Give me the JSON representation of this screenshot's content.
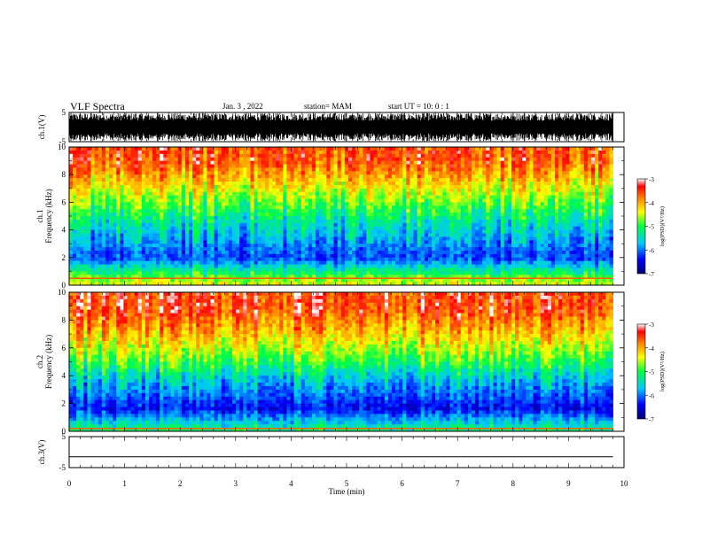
{
  "header": {
    "title": "VLF Spectra",
    "date": "Jan. 3 , 2022",
    "station": "station= MAM",
    "start": "start UT = 10: 0 : 1"
  },
  "chart_data": [
    {
      "type": "line",
      "panel": "waveform-ch1",
      "ylabel": "ch.1(V)",
      "ylim": [
        -5,
        5
      ],
      "yticks": [
        "5",
        "-5"
      ],
      "xlim": [
        0,
        10
      ],
      "series": [
        {
          "description_values": "dense broadband noise filling most of the ±5 V range, x from 0 to 9.8 min"
        }
      ]
    },
    {
      "type": "heatmap",
      "panel": "spectrogram-ch1",
      "ylabel": "ch.1\nFrequency (kHz)",
      "ylim": [
        0,
        10
      ],
      "yticks": [
        "0",
        "2",
        "4",
        "6",
        "8",
        "10"
      ],
      "xlim": [
        0,
        10
      ],
      "colorbar": {
        "label": "log(PSD)(V²/Hz)",
        "range": [
          -7,
          -3
        ],
        "ticks": [
          "-3",
          "-4",
          "-5",
          "-6",
          "-7"
        ]
      },
      "bands": [
        {
          "from_khz": 0,
          "to_khz": 0.5,
          "level": -4.5
        },
        {
          "from_khz": 0.5,
          "to_khz": 3.5,
          "level": -6.2
        },
        {
          "from_khz": 3.5,
          "to_khz": 5,
          "level": -5.5
        },
        {
          "from_khz": 5,
          "to_khz": 6.5,
          "level": -4.9
        },
        {
          "from_khz": 6.5,
          "to_khz": 8,
          "level": -4.3
        },
        {
          "from_khz": 8,
          "to_khz": 10,
          "level": -3.6
        }
      ]
    },
    {
      "type": "heatmap",
      "panel": "spectrogram-ch2",
      "ylabel": "ch.2\nFrequency (kHz)",
      "ylim": [
        0,
        10
      ],
      "yticks": [
        "0",
        "2",
        "4",
        "6",
        "8",
        "10"
      ],
      "xlim": [
        0,
        10
      ],
      "colorbar": {
        "label": "log(PSD)(V²/Hz)",
        "range": [
          -7,
          -3
        ],
        "ticks": [
          "-3",
          "-4",
          "-5",
          "-6",
          "-7"
        ]
      },
      "bands": [
        {
          "from_khz": 0,
          "to_khz": 0.3,
          "level": -5.2
        },
        {
          "from_khz": 0.3,
          "to_khz": 3,
          "level": -6.4
        },
        {
          "from_khz": 3,
          "to_khz": 4.5,
          "level": -5.6
        },
        {
          "from_khz": 4.5,
          "to_khz": 6,
          "level": -4.8
        },
        {
          "from_khz": 6,
          "to_khz": 7.5,
          "level": -4.2
        },
        {
          "from_khz": 7.5,
          "to_khz": 10,
          "level": -3.5
        }
      ]
    },
    {
      "type": "line",
      "panel": "waveform-ch3",
      "ylabel": "ch.3(V)",
      "ylim": [
        -5,
        5
      ],
      "yticks": [
        "5",
        "-5"
      ],
      "xlim": [
        0,
        10
      ],
      "series": [
        {
          "x": [
            0,
            9.8
          ],
          "y": [
            -1.5,
            -1.5
          ]
        }
      ]
    }
  ],
  "xaxis": {
    "label": "Time (min)",
    "ticks": [
      "0",
      "1",
      "2",
      "3",
      "4",
      "5",
      "6",
      "7",
      "8",
      "9",
      "10"
    ]
  }
}
